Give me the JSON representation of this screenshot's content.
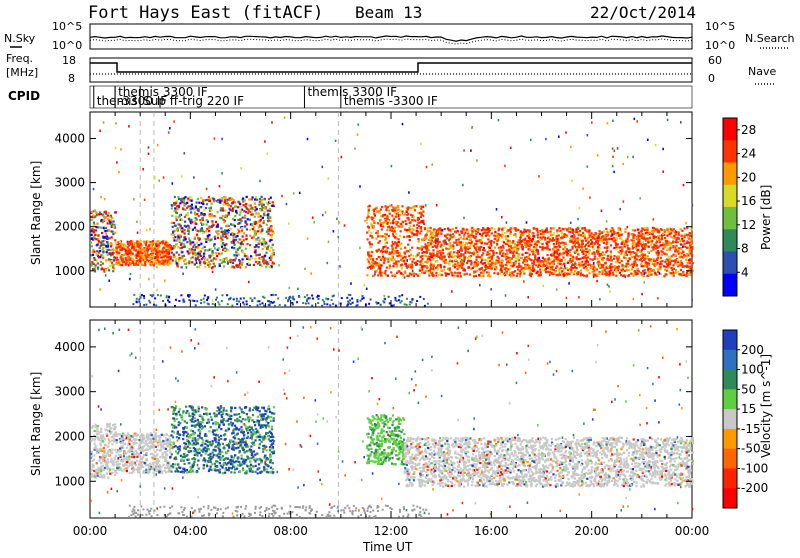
{
  "header": {
    "title": "Fort Hays East (fitACF)",
    "beam": "Beam 13",
    "date": "22/Oct/2014"
  },
  "top_panels": {
    "nsky_label": "N.Sky",
    "nsearch_label": "N.Search",
    "noise_ticks_left": [
      "10^5",
      "10^0"
    ],
    "noise_ticks_right": [
      "10^5",
      "10^0"
    ],
    "freq_label_line1": "Freq.",
    "freq_label_line2": "[MHz]",
    "freq_ticks": [
      "18",
      "8"
    ],
    "nave_label": "Nave",
    "nave_ticks": [
      "60",
      "0"
    ],
    "cpid_label": "CPID",
    "cpid_entries": [
      {
        "text": "themis",
        "start_h": 0.15,
        "row": 1
      },
      {
        "text": "themis 3300 IF",
        "start_h": 1.0,
        "row": 0
      },
      {
        "text": "-3300 IF",
        "start_h": 1.0,
        "row": 1
      },
      {
        "text": "Sup  ff-trig 220 IF",
        "start_h": 2.0,
        "row": 1
      },
      {
        "text": "themis 3300 IF",
        "start_h": 8.55,
        "row": 0
      },
      {
        "text": "themis -3300 IF",
        "start_h": 10.0,
        "row": 1
      }
    ]
  },
  "chart_data": [
    {
      "type": "heatmap",
      "title": "Power",
      "ylabel": "Slant Range [km]",
      "xlim_hours": [
        0,
        24
      ],
      "ylim_km": [
        180,
        4600
      ],
      "yticks": [
        1000,
        2000,
        3000,
        4000
      ],
      "colorbar": {
        "label": "Power [dB]",
        "ticks": [
          "4",
          "8",
          "12",
          "16",
          "20",
          "24",
          "28"
        ],
        "range": [
          0,
          30
        ],
        "colors": [
          "#0000ff",
          "#2c4fb2",
          "#2e8b57",
          "#6fbf3f",
          "#d9d92a",
          "#ff9900",
          "#ff3300",
          "#ff0000"
        ]
      },
      "scatter_regions": [
        {
          "x": [
            0.0,
            1.0
          ],
          "y": [
            1000,
            2400
          ],
          "level": "mixed"
        },
        {
          "x": [
            1.0,
            3.2
          ],
          "y": [
            1150,
            1700
          ],
          "level": "high"
        },
        {
          "x": [
            3.2,
            7.3
          ],
          "y": [
            1100,
            2700
          ],
          "level": "mixed"
        },
        {
          "x": [
            11.0,
            13.3
          ],
          "y": [
            900,
            2500
          ],
          "level": "high"
        },
        {
          "x": [
            13.3,
            24.0
          ],
          "y": [
            900,
            2000
          ],
          "level": "high"
        }
      ]
    },
    {
      "type": "heatmap",
      "title": "Velocity",
      "ylabel": "Slant Range [km]",
      "xlabel": "Time UT",
      "xticks": [
        "00:00",
        "04:00",
        "08:00",
        "12:00",
        "16:00",
        "20:00",
        "00:00"
      ],
      "xlim_hours": [
        0,
        24
      ],
      "ylim_km": [
        180,
        4600
      ],
      "yticks": [
        1000,
        2000,
        3000,
        4000
      ],
      "colorbar": {
        "label": "Velocity [m s^-1]",
        "ticks": [
          "200",
          "100",
          "50",
          "15",
          "-15",
          "-50",
          "-100",
          "-200"
        ],
        "colors": [
          "#1f3fbf",
          "#2f70c0",
          "#2e8b57",
          "#5fcf3f",
          "#c8c8c8",
          "#ff9900",
          "#ff6600",
          "#ff2200",
          "#ff0000"
        ]
      },
      "scatter_regions": [
        {
          "x": [
            0.0,
            1.0
          ],
          "y": [
            1100,
            2300
          ],
          "level": "gray"
        },
        {
          "x": [
            1.0,
            3.2
          ],
          "y": [
            1200,
            2100
          ],
          "level": "gray"
        },
        {
          "x": [
            3.2,
            7.3
          ],
          "y": [
            1200,
            2700
          ],
          "level": "blue-green"
        },
        {
          "x": [
            11.0,
            12.5
          ],
          "y": [
            1400,
            2500
          ],
          "level": "green"
        },
        {
          "x": [
            12.5,
            24.0
          ],
          "y": [
            900,
            2000
          ],
          "level": "gray"
        }
      ]
    }
  ]
}
